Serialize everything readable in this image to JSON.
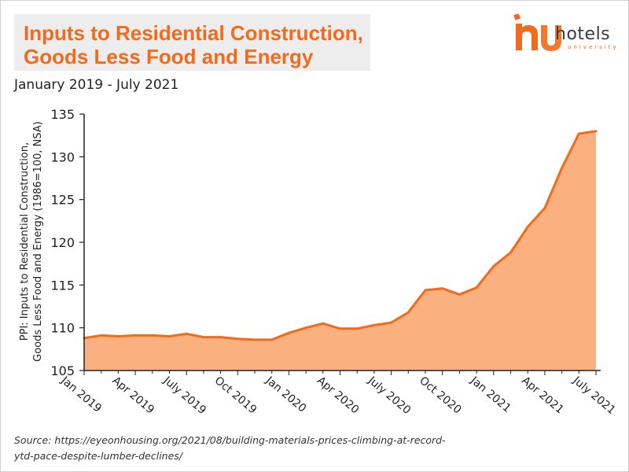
{
  "title": {
    "line1": "Inputs to Residential Construction,",
    "line2": "Goods Less Food and Energy"
  },
  "subtitle": "January 2019 - July 2021",
  "logo": {
    "text": "hotels",
    "sub": "university",
    "icon": "hu-logo-icon"
  },
  "source": {
    "line1": "Source: https://eyeonhousing.org/2021/08/building-materials-prices-climbing-at-record-",
    "line2": "ytd-pace-despite-lumber-declines/"
  },
  "colors": {
    "accent": "#f26a1b",
    "fill": "#fbb07f",
    "line": "#f26a1b",
    "axis": "#222222"
  },
  "chart_data": {
    "type": "area",
    "ylabel_line1": "PPI: Inputs to Residential Construction,",
    "ylabel_line2": "Goods Less Food and Energy (1986=100, NSA)",
    "ylim": [
      105,
      135
    ],
    "yticks": [
      "105",
      "110",
      "115",
      "120",
      "125",
      "130",
      "135"
    ],
    "grid": false,
    "xtick_labels": [
      "Jan 2019",
      "Apr 2019",
      "July 2019",
      "Oct 2019",
      "Jan 2020",
      "Apr 2020",
      "July 2020",
      "Oct 2020",
      "Jan 2021",
      "Apr 2021",
      "July 2021"
    ],
    "x": [
      "2019-01",
      "2019-02",
      "2019-03",
      "2019-04",
      "2019-05",
      "2019-06",
      "2019-07",
      "2019-08",
      "2019-09",
      "2019-10",
      "2019-11",
      "2019-12",
      "2020-01",
      "2020-02",
      "2020-03",
      "2020-04",
      "2020-05",
      "2020-06",
      "2020-07",
      "2020-08",
      "2020-09",
      "2020-10",
      "2020-11",
      "2020-12",
      "2021-01",
      "2021-02",
      "2021-03",
      "2021-04",
      "2021-05",
      "2021-06",
      "2021-07"
    ],
    "values": [
      108.8,
      109.1,
      109.0,
      109.1,
      109.1,
      109.0,
      109.3,
      108.9,
      108.9,
      108.7,
      108.6,
      108.6,
      109.4,
      110.0,
      110.5,
      109.9,
      109.9,
      110.3,
      110.6,
      111.8,
      114.4,
      114.6,
      113.9,
      114.7,
      117.2,
      118.8,
      121.8,
      124.0,
      128.7,
      132.7,
      133.0
    ]
  }
}
